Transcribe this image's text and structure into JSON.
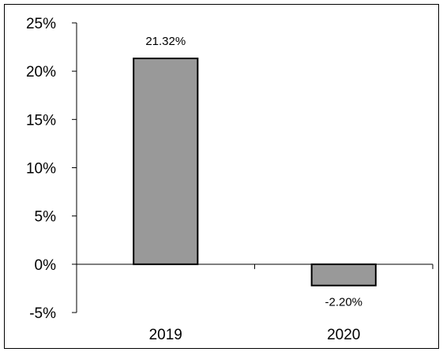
{
  "chart_data": {
    "type": "bar",
    "categories": [
      "2019",
      "2020"
    ],
    "values": [
      21.32,
      -2.2
    ],
    "data_labels": [
      "21.32%",
      "-2.20%"
    ],
    "ylim": [
      -5,
      25
    ],
    "yticks": [
      25,
      20,
      15,
      10,
      5,
      0,
      -5
    ],
    "ytick_labels": [
      "25%",
      "20%",
      "15%",
      "10%",
      "5%",
      "0%",
      "-5%"
    ],
    "title": "",
    "xlabel": "",
    "ylabel": "",
    "grid": false,
    "bar_color": "#999999",
    "bar_edge_color": "#000000"
  }
}
